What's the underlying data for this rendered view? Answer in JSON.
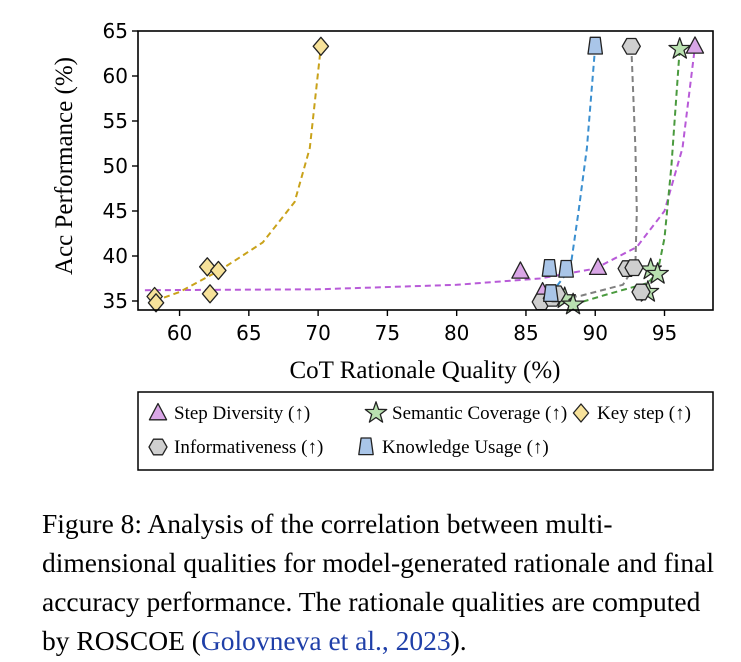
{
  "chart_data": {
    "type": "scatter",
    "xlabel": "CoT Rationale Quality (%)",
    "ylabel": "Acc Performance (%)",
    "xlim": [
      57,
      98.5
    ],
    "ylim": [
      34,
      65
    ],
    "xticks": [
      60,
      65,
      70,
      75,
      80,
      85,
      90,
      95
    ],
    "yticks": [
      35,
      40,
      45,
      50,
      55,
      60,
      65
    ],
    "grid": false,
    "legend_position": "below",
    "series": [
      {
        "name": "Step Diversity (↑)",
        "marker": "triangle",
        "color": "#d9a6e6",
        "line_color": "#b85ad8",
        "points": [
          [
            84.6,
            38.3
          ],
          [
            86.2,
            36.0
          ],
          [
            90.2,
            38.7
          ],
          [
            97.2,
            63.3
          ]
        ],
        "trend": [
          [
            57.5,
            36.2
          ],
          [
            70,
            36.3
          ],
          [
            80,
            36.8
          ],
          [
            86,
            37.5
          ],
          [
            90,
            38.6
          ],
          [
            93,
            41
          ],
          [
            95,
            45
          ],
          [
            96.3,
            52
          ],
          [
            97.2,
            63.3
          ]
        ]
      },
      {
        "name": "Semantic Coverage (↑)",
        "marker": "star",
        "color": "#b9e1b0",
        "line_color": "#4a9a3e",
        "points": [
          [
            87.8,
            35.3
          ],
          [
            88.4,
            34.6
          ],
          [
            93.8,
            36.0
          ],
          [
            94.0,
            38.5
          ],
          [
            94.5,
            38.0
          ],
          [
            96.1,
            63.0
          ]
        ],
        "trend": [
          [
            88.4,
            34.6
          ],
          [
            91,
            35.8
          ],
          [
            93.8,
            37
          ],
          [
            94.5,
            38.2
          ],
          [
            95.0,
            42
          ],
          [
            95.5,
            50
          ],
          [
            96.1,
            63.0
          ]
        ]
      },
      {
        "name": "Key step (↑)",
        "marker": "diamond",
        "color": "#f7e29a",
        "line_color": "#c9a21a",
        "points": [
          [
            58.2,
            35.5
          ],
          [
            58.3,
            34.8
          ],
          [
            62.0,
            38.8
          ],
          [
            62.8,
            38.4
          ],
          [
            62.2,
            35.8
          ],
          [
            70.2,
            63.3
          ]
        ],
        "trend": [
          [
            58.2,
            35.0
          ],
          [
            60,
            36.0
          ],
          [
            63,
            38.5
          ],
          [
            66,
            41.5
          ],
          [
            68.3,
            46
          ],
          [
            69.4,
            52
          ],
          [
            70.2,
            63.3
          ]
        ]
      },
      {
        "name": "Informativeness (↑)",
        "marker": "hexagon",
        "color": "#cfcfcf",
        "line_color": "#808080",
        "points": [
          [
            86.1,
            34.9
          ],
          [
            86.9,
            35.3
          ],
          [
            87.2,
            35.8
          ],
          [
            92.3,
            38.6
          ],
          [
            92.8,
            38.7
          ],
          [
            93.3,
            36.0
          ],
          [
            92.6,
            63.3
          ]
        ],
        "trend": [
          [
            86.1,
            34.9
          ],
          [
            89,
            35.6
          ],
          [
            92,
            36.8
          ],
          [
            92.9,
            39
          ],
          [
            93.0,
            45
          ],
          [
            92.9,
            52
          ],
          [
            92.6,
            63.3
          ]
        ]
      },
      {
        "name": "Knowledge Usage (↑)",
        "marker": "trapezoid",
        "color": "#a9c5e8",
        "line_color": "#3a8fd0",
        "points": [
          [
            86.7,
            38.6
          ],
          [
            87.9,
            38.5
          ],
          [
            86.8,
            35.8
          ],
          [
            90.0,
            63.3
          ]
        ],
        "trend": [
          [
            86.8,
            35.8
          ],
          [
            88.2,
            38.6
          ],
          [
            88.8,
            45
          ],
          [
            89.4,
            52
          ],
          [
            90.0,
            63.3
          ]
        ]
      }
    ]
  },
  "caption": {
    "text": "Figure 8: Analysis of the correlation between multi-dimensional qualities for model-generated rationale and final accuracy performance. The rationale qualities are computed by ROSCOE (",
    "citation": "Golovneva et al., 2023",
    "closing": ")."
  }
}
